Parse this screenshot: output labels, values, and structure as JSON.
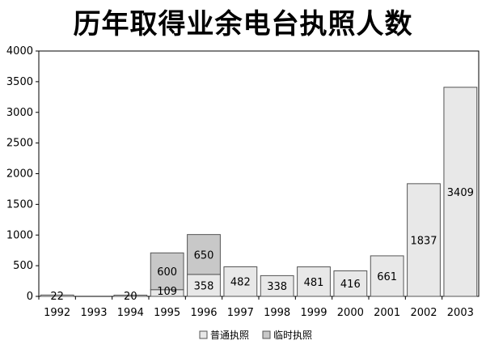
{
  "chart_data": {
    "type": "bar",
    "stacked": true,
    "title": "历年取得业余电台执照人数",
    "xlabel": "",
    "ylabel": "",
    "categories": [
      "1992",
      "1993",
      "1994",
      "1995",
      "1996",
      "1997",
      "1998",
      "1999",
      "2000",
      "2001",
      "2002",
      "2003"
    ],
    "series": [
      {
        "name": "普通执照",
        "color": "#e8e8e8",
        "values": [
          22,
          0,
          20,
          109,
          358,
          482,
          338,
          481,
          416,
          661,
          1837,
          3409
        ],
        "labels": [
          "22",
          "",
          "20",
          "109",
          "358",
          "482",
          "338",
          "481",
          "416",
          "661",
          "1837",
          "3409"
        ]
      },
      {
        "name": "临时执照",
        "color": "#c8c8c8",
        "values": [
          0,
          0,
          0,
          600,
          650,
          0,
          0,
          0,
          0,
          0,
          0,
          0
        ],
        "labels": [
          "",
          "",
          "",
          "600",
          "650",
          "",
          "",
          "",
          "",
          "",
          "",
          ""
        ]
      }
    ],
    "ylim": [
      0,
      4000
    ],
    "yticks": [
      "0",
      "500",
      "1000",
      "1500",
      "2000",
      "2500",
      "3000",
      "3500",
      "4000"
    ],
    "grid": false,
    "legend": "bottom-right"
  }
}
